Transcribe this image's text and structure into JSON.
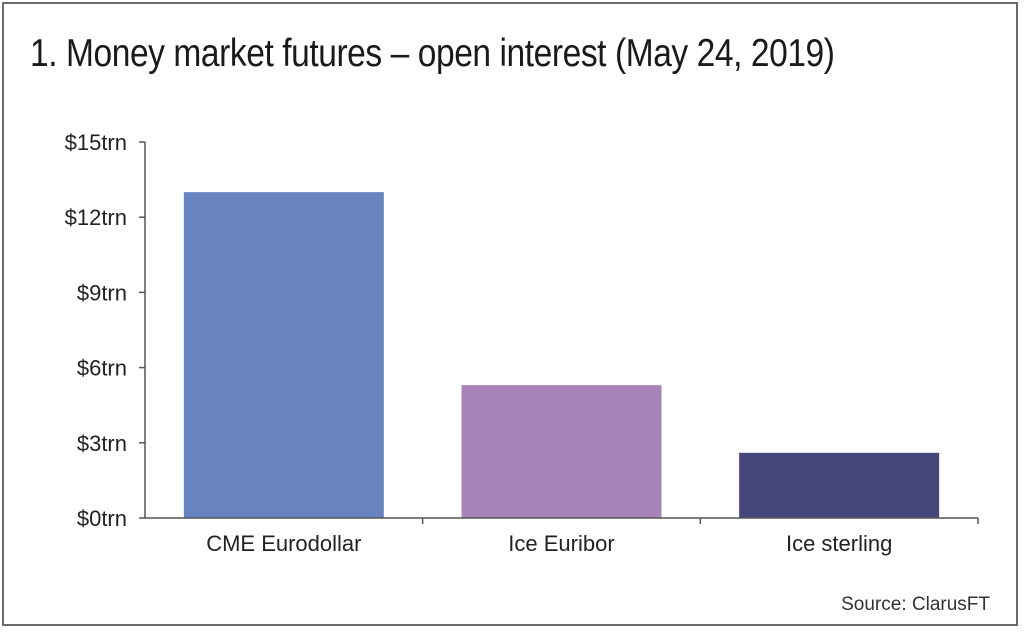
{
  "chart_data": {
    "type": "bar",
    "title": "1. Money market futures – open interest (May 24, 2019)",
    "source": "Source: ClarusFT",
    "categories": [
      "CME Eurodollar",
      "Ice Euribor",
      "Ice sterling"
    ],
    "values": [
      13.0,
      5.3,
      2.6
    ],
    "unit": "trn",
    "ylim": [
      0,
      15
    ],
    "yticks": [
      0,
      3,
      6,
      9,
      12,
      15
    ],
    "ytick_labels": [
      "$0trn",
      "$3trn",
      "$6trn",
      "$9trn",
      "$12trn",
      "$15trn"
    ],
    "bar_colors": [
      "#6783c0",
      "#a884bb",
      "#47467a"
    ],
    "axis_color": "#555555",
    "grid": false,
    "legend": false,
    "xlabel": "",
    "ylabel": ""
  }
}
